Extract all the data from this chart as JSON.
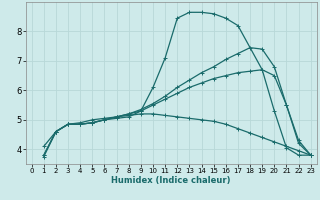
{
  "xlabel": "Humidex (Indice chaleur)",
  "background_color": "#ceeaea",
  "line_color": "#1a6b6b",
  "grid_color": "#b8d8d8",
  "xlim": [
    -0.5,
    23.5
  ],
  "ylim": [
    3.5,
    9.0
  ],
  "xticks": [
    0,
    1,
    2,
    3,
    4,
    5,
    6,
    7,
    8,
    9,
    10,
    11,
    12,
    13,
    14,
    15,
    16,
    17,
    18,
    19,
    20,
    21,
    22,
    23
  ],
  "yticks": [
    4,
    5,
    6,
    7,
    8
  ],
  "lines": [
    {
      "x": [
        1,
        2,
        3,
        4,
        5,
        6,
        7,
        8,
        9,
        10,
        11,
        12,
        13,
        14,
        15,
        16,
        17,
        19,
        20,
        21,
        22,
        23
      ],
      "y": [
        4.1,
        4.6,
        4.85,
        4.85,
        4.9,
        5.0,
        5.05,
        5.1,
        5.3,
        6.1,
        7.1,
        8.45,
        8.65,
        8.65,
        8.6,
        8.45,
        8.2,
        6.7,
        5.3,
        4.05,
        3.8,
        3.8
      ]
    },
    {
      "x": [
        1,
        2,
        3,
        4,
        5,
        6,
        7,
        8,
        9,
        10,
        11,
        12,
        13,
        14,
        15,
        16,
        17,
        18,
        19,
        20,
        21,
        22,
        23
      ],
      "y": [
        3.8,
        4.6,
        4.85,
        4.85,
        4.9,
        5.0,
        5.1,
        5.2,
        5.35,
        5.55,
        5.8,
        6.1,
        6.35,
        6.6,
        6.8,
        7.05,
        7.25,
        7.45,
        7.4,
        6.8,
        5.5,
        4.3,
        3.8
      ]
    },
    {
      "x": [
        1,
        2,
        3,
        4,
        5,
        6,
        7,
        8,
        9,
        10,
        11,
        12,
        13,
        14,
        15,
        16,
        17,
        18,
        19,
        20,
        21,
        22,
        23
      ],
      "y": [
        3.8,
        4.6,
        4.85,
        4.85,
        4.9,
        5.0,
        5.1,
        5.2,
        5.3,
        5.5,
        5.7,
        5.9,
        6.1,
        6.25,
        6.4,
        6.5,
        6.6,
        6.65,
        6.7,
        6.5,
        5.5,
        4.2,
        3.8
      ]
    },
    {
      "x": [
        1,
        2,
        3,
        4,
        5,
        6,
        7,
        8,
        9,
        10,
        11,
        12,
        13,
        14,
        15,
        16,
        17,
        18,
        19,
        20,
        21,
        22,
        23
      ],
      "y": [
        3.75,
        4.6,
        4.85,
        4.9,
        5.0,
        5.05,
        5.1,
        5.15,
        5.2,
        5.2,
        5.15,
        5.1,
        5.05,
        5.0,
        4.95,
        4.85,
        4.7,
        4.55,
        4.4,
        4.25,
        4.1,
        3.95,
        3.8
      ]
    }
  ]
}
